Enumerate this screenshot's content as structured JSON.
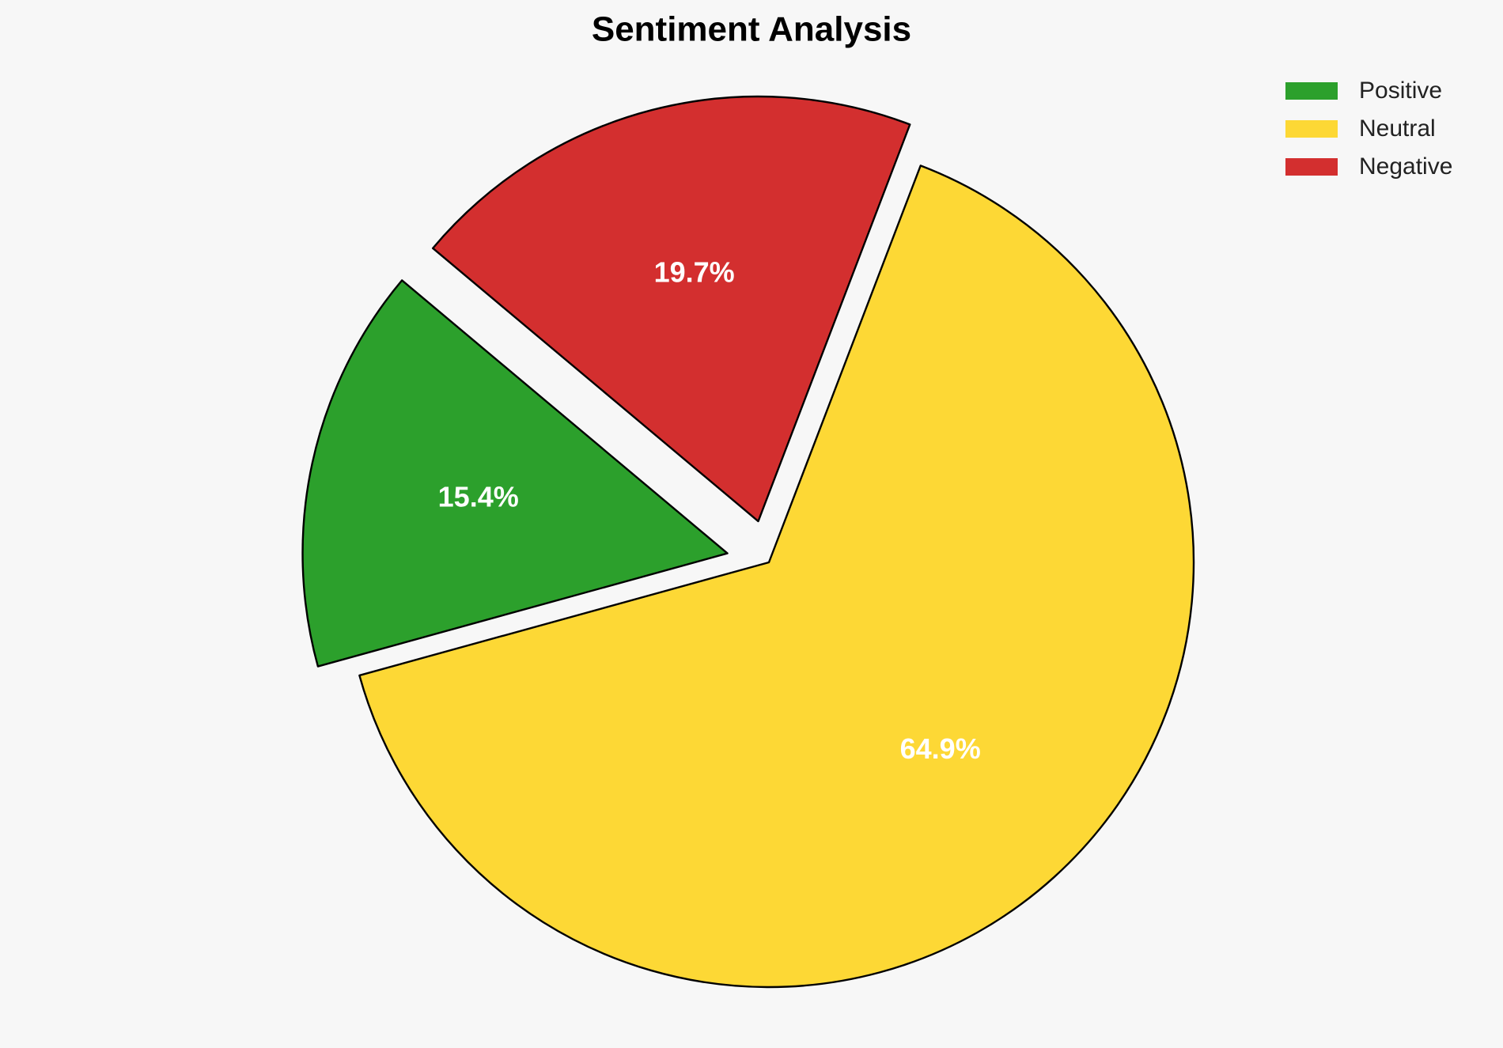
{
  "chart_data": {
    "type": "pie",
    "title": "Sentiment Analysis",
    "categories": [
      "Positive",
      "Neutral",
      "Negative"
    ],
    "values": [
      15.4,
      64.9,
      19.7
    ],
    "value_labels": [
      "15.4%",
      "64.9%",
      "19.7%"
    ],
    "colors": [
      "#2ca02c",
      "#fdd835",
      "#d32f2f"
    ],
    "explode": [
      0.1,
      0,
      0.1
    ],
    "startangle": 140,
    "legend": "upper right"
  }
}
